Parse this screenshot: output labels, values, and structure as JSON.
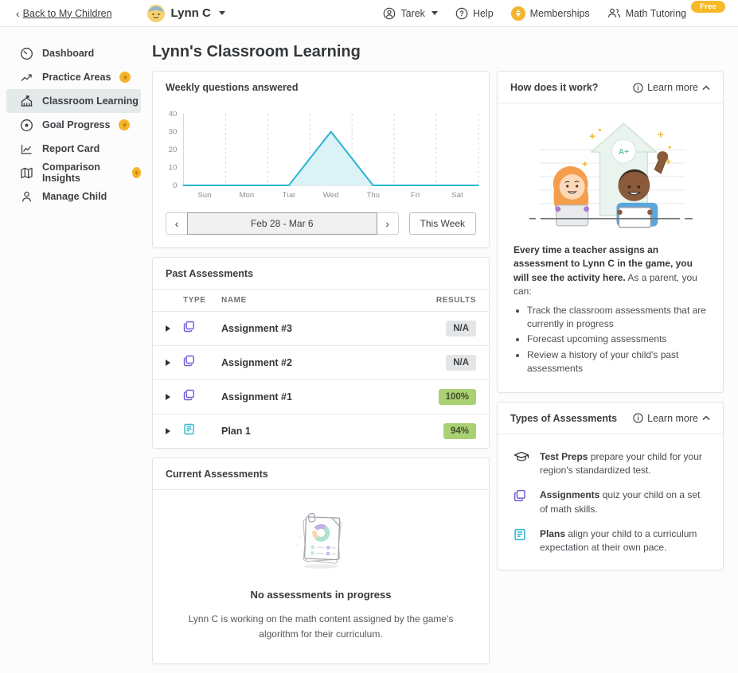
{
  "colors": {
    "accent_teal": "#2ab7d0",
    "accent_purple": "#6f5bd6",
    "badge_green_bg": "#a9d173",
    "badge_gray_bg": "#e4e5e6",
    "coin_yellow": "#f6b42c",
    "free_pill_bg": "#f7b928",
    "selected_item_bg": "#e4e9e9"
  },
  "topbar": {
    "back_link": "Back to My Children",
    "child_name": "Lynn C",
    "parent_name": "Tarek",
    "help_label": "Help",
    "memberships_label": "Memberships",
    "math_tutoring_label": "Math Tutoring",
    "free_badge": "Free"
  },
  "sidebar": {
    "items": [
      {
        "label": "Dashboard",
        "badge": false
      },
      {
        "label": "Practice Areas",
        "badge": true
      },
      {
        "label": "Classroom Learning",
        "badge": false
      },
      {
        "label": "Goal Progress",
        "badge": true
      },
      {
        "label": "Report Card",
        "badge": false
      },
      {
        "label": "Comparison Insights",
        "badge": true
      },
      {
        "label": "Manage Child",
        "badge": false
      }
    ]
  },
  "page_title": "Lynn's Classroom Learning",
  "chart_card": {
    "title": "Weekly questions answered",
    "prev_glyph": "‹",
    "next_glyph": "›",
    "date_range": "Feb 28 - Mar 6",
    "this_week_label": "This Week"
  },
  "chart_data": {
    "type": "area",
    "title": "Weekly questions answered",
    "categories": [
      "Sun",
      "Mon",
      "Tue",
      "Wed",
      "Thu",
      "Fri",
      "Sat"
    ],
    "values": [
      0,
      0,
      0,
      30,
      0,
      0,
      0
    ],
    "xlabel": "",
    "ylabel": "",
    "ylim": [
      0,
      40
    ],
    "yticks": [
      0,
      10,
      20,
      30,
      40
    ],
    "grid": "vertical-dashed",
    "legend": "none",
    "line_color": "#2ab7d0",
    "fill_color": "#dbf2f7"
  },
  "past_assessments": {
    "title": "Past Assessments",
    "columns": [
      "TYPE",
      "NAME",
      "RESULTS"
    ],
    "rows": [
      {
        "type": "assignment",
        "name": "Assignment #3",
        "result": "N/A",
        "result_type": "na"
      },
      {
        "type": "assignment",
        "name": "Assignment #2",
        "result": "N/A",
        "result_type": "na"
      },
      {
        "type": "assignment",
        "name": "Assignment #1",
        "result": "100%",
        "result_type": "success"
      },
      {
        "type": "plan",
        "name": "Plan 1",
        "result": "94%",
        "result_type": "success"
      }
    ]
  },
  "current_assessments": {
    "title": "Current Assessments",
    "empty_title": "No assessments in progress",
    "empty_desc": "Lynn C is working on the math content assigned by the game's algorithm for their curriculum."
  },
  "how_it_works": {
    "title": "How does it work?",
    "learn_more": "Learn more",
    "illustration_badge": "A+",
    "intro_bold": "Every time a teacher assigns an assessment to Lynn C in the game, you will see the activity here.",
    "intro_rest": " As a parent, you can:",
    "bullets": [
      "Track the classroom assessments that are currently in progress",
      "Forecast upcoming assessments",
      "Review a history of your child's past assessments"
    ]
  },
  "assessment_types": {
    "title": "Types of Assessments",
    "learn_more": "Learn more",
    "items": [
      {
        "lead": "Test Preps",
        "rest": " prepare your child for your region's standardized test."
      },
      {
        "lead": "Assignments",
        "rest": " quiz your child on a set of math skills."
      },
      {
        "lead": "Plans",
        "rest": " align your child to a curriculum expectation at their own pace."
      }
    ]
  }
}
